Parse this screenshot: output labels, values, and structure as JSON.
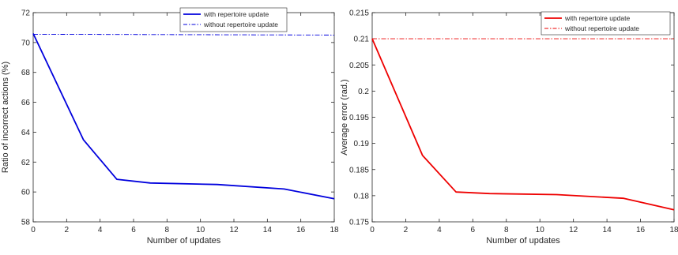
{
  "chart_data": [
    {
      "type": "line",
      "xlabel": "Number of updates",
      "ylabel": "Ratio of incorrect actions (%)",
      "xlim": [
        0,
        18
      ],
      "ylim": [
        58,
        72
      ],
      "xticks": [
        "0",
        "2",
        "4",
        "6",
        "8",
        "10",
        "12",
        "14",
        "16",
        "18"
      ],
      "yticks": [
        "58",
        "60",
        "62",
        "64",
        "66",
        "68",
        "70",
        "72"
      ],
      "grid": false,
      "legend_position": "top-right",
      "series": [
        {
          "name": "with repertoire update",
          "style": "solid",
          "color": "#0000dd",
          "x": [
            0,
            3,
            5,
            7,
            11,
            15,
            18
          ],
          "y": [
            70.6,
            63.5,
            60.85,
            60.6,
            60.5,
            60.2,
            59.55
          ]
        },
        {
          "name": "without repertoire update",
          "style": "dashdot",
          "color": "#0000dd",
          "x": [
            0,
            18
          ],
          "y": [
            70.55,
            70.5
          ]
        }
      ]
    },
    {
      "type": "line",
      "xlabel": "Number of updates",
      "ylabel": "Average error (rad.)",
      "xlim": [
        0,
        18
      ],
      "ylim": [
        0.175,
        0.215
      ],
      "xticks": [
        "0",
        "2",
        "4",
        "6",
        "8",
        "10",
        "12",
        "14",
        "16",
        "18"
      ],
      "yticks": [
        "0.175",
        "0.18",
        "0.185",
        "0.19",
        "0.195",
        "0.2",
        "0.205",
        "0.21",
        "0.215"
      ],
      "grid": false,
      "legend_position": "top-right",
      "series": [
        {
          "name": "with repertoire update",
          "style": "solid",
          "color": "#ee0000",
          "x": [
            0,
            3,
            5,
            7,
            11,
            15,
            18
          ],
          "y": [
            0.21,
            0.1877,
            0.1807,
            0.1804,
            0.1802,
            0.1795,
            0.1773
          ]
        },
        {
          "name": "without repertoire update",
          "style": "dashdot",
          "color": "#ee0000",
          "x": [
            0,
            18
          ],
          "y": [
            0.21,
            0.21
          ]
        }
      ]
    }
  ]
}
